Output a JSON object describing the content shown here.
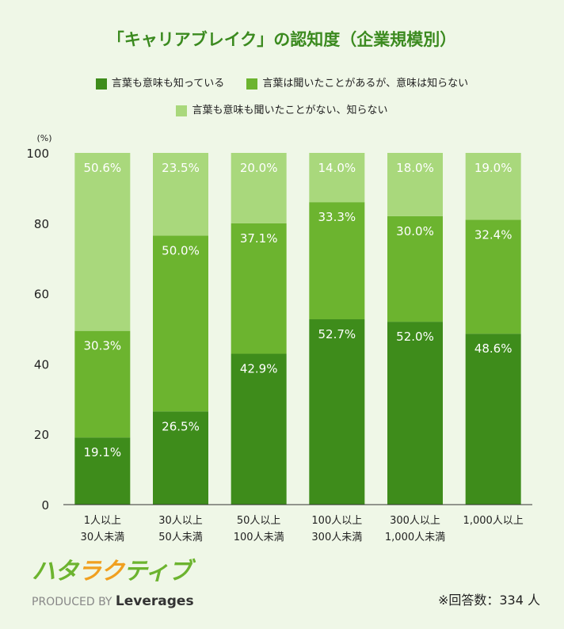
{
  "title": "「キャリアブレイク」の認知度（企業規模別）",
  "colors": {
    "dark": "#3e8c1b",
    "mid": "#6cb42f",
    "light": "#a9d87c",
    "title": "#3b8a1f",
    "background": "#eff7e7"
  },
  "chart_data": {
    "type": "bar",
    "stacked": true,
    "orientation": "vertical",
    "ylabel": "(%)",
    "ylim": [
      0,
      100
    ],
    "yticks": [
      0,
      20,
      40,
      60,
      80,
      100
    ],
    "grid": false,
    "legend_placement": "top",
    "categories": [
      [
        "1人以上",
        "30人未満"
      ],
      [
        "30人以上",
        "50人未満"
      ],
      [
        "50人以上",
        "100人未満"
      ],
      [
        "100人以上",
        "300人未満"
      ],
      [
        "300人以上",
        "1,000人未満"
      ],
      [
        "1,000人以上"
      ]
    ],
    "series": [
      {
        "name": "言葉も意味も知っている",
        "color": "#3e8c1b",
        "values": [
          19.1,
          26.5,
          42.9,
          52.7,
          52.0,
          48.6
        ],
        "labels": [
          "19.1%",
          "26.5%",
          "42.9%",
          "52.7%",
          "52.0%",
          "48.6%"
        ]
      },
      {
        "name": "言葉は聞いたことがあるが、意味は知らない",
        "color": "#6cb42f",
        "values": [
          30.3,
          50.0,
          37.1,
          33.3,
          30.0,
          32.4
        ],
        "labels": [
          "30.3%",
          "50.0%",
          "37.1%",
          "33.3%",
          "30.0%",
          "32.4%"
        ]
      },
      {
        "name": "言葉も意味も聞いたことがない、知らない",
        "color": "#a9d87c",
        "values": [
          50.6,
          23.5,
          20.0,
          14.0,
          18.0,
          19.0
        ],
        "labels": [
          "50.6%",
          "23.5%",
          "20.0%",
          "14.0%",
          "18.0%",
          "19.0%"
        ]
      }
    ]
  },
  "footer": {
    "respondents": "※回答数：334 人",
    "logo": "ハタラクティブ",
    "produced_by": "PRODUCED BY",
    "brand": "Leverages"
  }
}
